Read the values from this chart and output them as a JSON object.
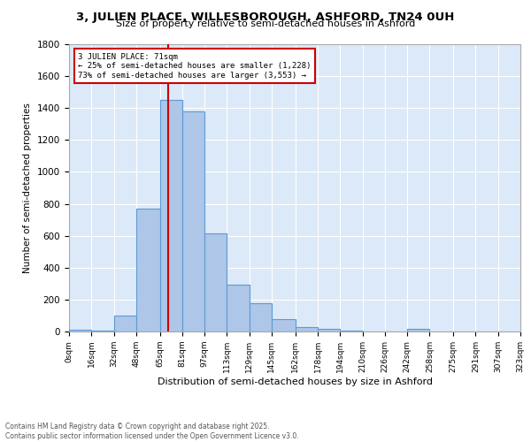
{
  "title": "3, JULIEN PLACE, WILLESBOROUGH, ASHFORD, TN24 0UH",
  "subtitle": "Size of property relative to semi-detached houses in Ashford",
  "xlabel": "Distribution of semi-detached houses by size in Ashford",
  "ylabel": "Number of semi-detached properties",
  "bin_edges": [
    0,
    16,
    32,
    48,
    65,
    81,
    97,
    113,
    129,
    145,
    162,
    178,
    194,
    210,
    226,
    242,
    258,
    275,
    291,
    307,
    323
  ],
  "counts": [
    10,
    5,
    100,
    770,
    1450,
    1380,
    615,
    295,
    175,
    80,
    30,
    15,
    5,
    0,
    0,
    15,
    0,
    0,
    0,
    0
  ],
  "bar_color": "#aec6e8",
  "bar_edge_color": "#5b9bd5",
  "property_size": 71,
  "vline_color": "#cc0000",
  "annotation_text": "3 JULIEN PLACE: 71sqm\n← 25% of semi-detached houses are smaller (1,228)\n73% of semi-detached houses are larger (3,553) →",
  "annotation_box_color": "#ffffff",
  "annotation_box_edge": "#cc0000",
  "bg_color": "#dce9f8",
  "footer_text": "Contains HM Land Registry data © Crown copyright and database right 2025.\nContains public sector information licensed under the Open Government Licence v3.0.",
  "tick_labels": [
    "0sqm",
    "16sqm",
    "32sqm",
    "48sqm",
    "65sqm",
    "81sqm",
    "97sqm",
    "113sqm",
    "129sqm",
    "145sqm",
    "162sqm",
    "178sqm",
    "194sqm",
    "210sqm",
    "226sqm",
    "242sqm",
    "258sqm",
    "275sqm",
    "291sqm",
    "307sqm",
    "323sqm"
  ],
  "ylim": [
    0,
    1800
  ],
  "yticks": [
    0,
    200,
    400,
    600,
    800,
    1000,
    1200,
    1400,
    1600,
    1800
  ]
}
